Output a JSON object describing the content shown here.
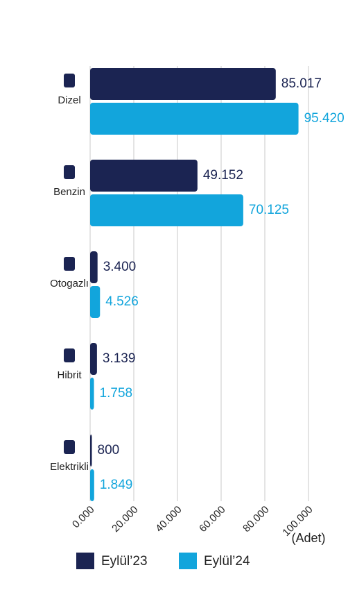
{
  "chart_data": {
    "type": "hbar",
    "categories": [
      "Dizel",
      "Benzin",
      "Otogazlı",
      "Hibrit",
      "Elektrikli"
    ],
    "series": [
      {
        "name": "Eylül’23",
        "color": "#1b2452",
        "values": [
          85017,
          49152,
          3400,
          3139,
          800
        ],
        "value_labels": [
          "85.017",
          "49.152",
          "3.400",
          "3.139",
          "800"
        ]
      },
      {
        "name": "Eylül’24",
        "color": "#12a5dc",
        "values": [
          95420,
          70125,
          4526,
          1758,
          1849
        ],
        "value_labels": [
          "95.420",
          "70.125",
          "4.526",
          "1.758",
          "1.849"
        ]
      }
    ],
    "xlim": [
      0,
      100000
    ],
    "xticks": [
      {
        "value": 0,
        "label": "0.000"
      },
      {
        "value": 20000,
        "label": "20.000"
      },
      {
        "value": 40000,
        "label": "40.000"
      },
      {
        "value": 60000,
        "label": "60.000"
      },
      {
        "value": 80000,
        "label": "80.000"
      },
      {
        "value": 100000,
        "label": "100.000"
      }
    ],
    "xlabel": "(Adet)",
    "grid": true,
    "legend": "bottom"
  }
}
